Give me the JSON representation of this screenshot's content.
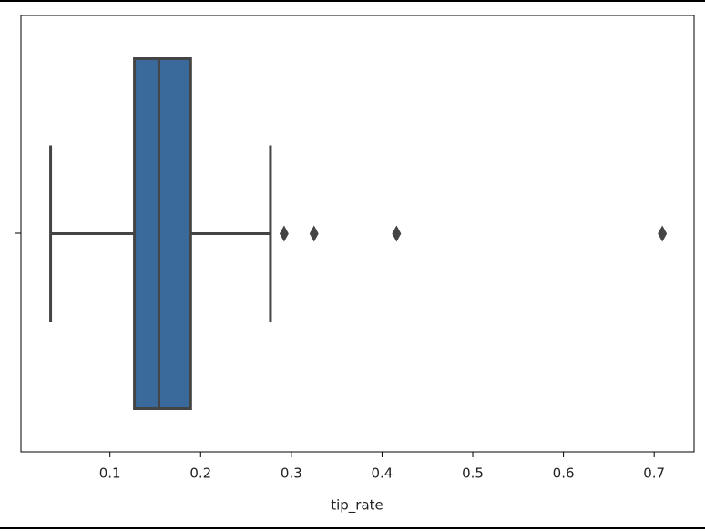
{
  "chart_data": {
    "type": "box",
    "xlabel": "tip_rate",
    "color": "#3a6a9c",
    "xlim": [
      0.0019,
      0.744
    ],
    "xticks": [
      0.1,
      0.2,
      0.3,
      0.4,
      0.5,
      0.6,
      0.7
    ],
    "boxes": [
      {
        "whislo": 0.0346,
        "q1": 0.127,
        "med": 0.154,
        "q3": 0.189,
        "whishi": 0.277,
        "fliers": [
          0.292,
          0.325,
          0.416,
          0.709
        ]
      }
    ]
  }
}
